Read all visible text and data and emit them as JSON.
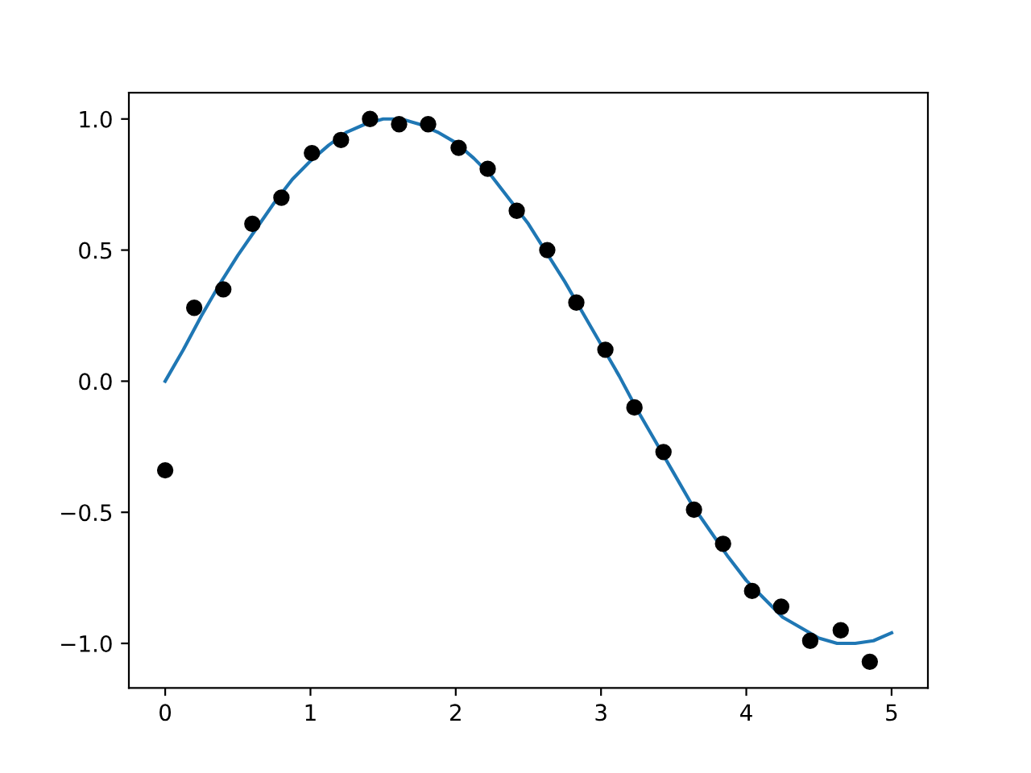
{
  "chart_data": {
    "type": "line",
    "series": [
      {
        "color": "#1f77b4",
        "marker": "none",
        "line_style": "solid",
        "x": [
          0,
          0.125,
          0.25,
          0.375,
          0.5,
          0.625,
          0.75,
          0.875,
          1,
          1.125,
          1.25,
          1.375,
          1.5,
          1.625,
          1.75,
          1.875,
          2,
          2.125,
          2.25,
          2.375,
          2.5,
          2.625,
          2.75,
          2.875,
          3,
          3.125,
          3.25,
          3.375,
          3.5,
          3.625,
          3.75,
          3.875,
          4,
          4.125,
          4.25,
          4.375,
          4.5,
          4.625,
          4.75,
          4.875,
          5
        ],
        "values": [
          0,
          0.12,
          0.25,
          0.37,
          0.48,
          0.58,
          0.68,
          0.77,
          0.84,
          0.9,
          0.95,
          0.98,
          1.0,
          1.0,
          0.98,
          0.95,
          0.91,
          0.85,
          0.78,
          0.69,
          0.6,
          0.49,
          0.38,
          0.26,
          0.14,
          0.02,
          -0.11,
          -0.23,
          -0.35,
          -0.47,
          -0.57,
          -0.67,
          -0.76,
          -0.83,
          -0.9,
          -0.94,
          -0.98,
          -1.0,
          -1.0,
          -0.99,
          -0.96
        ]
      },
      {
        "type": "scatter",
        "color": "#000000",
        "marker": "circle",
        "x": [
          0,
          0.2,
          0.4,
          0.6,
          0.8,
          1.01,
          1.21,
          1.41,
          1.61,
          1.81,
          2.02,
          2.22,
          2.42,
          2.63,
          2.83,
          3.03,
          3.23,
          3.43,
          3.64,
          3.84,
          4.04,
          4.24,
          4.44,
          4.65,
          4.85
        ],
        "values": [
          -0.34,
          0.28,
          0.35,
          0.6,
          0.7,
          0.87,
          0.92,
          1.0,
          0.98,
          0.98,
          0.89,
          0.81,
          0.65,
          0.5,
          0.3,
          0.12,
          -0.1,
          -0.27,
          -0.49,
          -0.62,
          -0.8,
          -0.86,
          -0.99,
          -0.95,
          -1.07
        ]
      }
    ],
    "xlim": [
      -0.25,
      5.25
    ],
    "xticks": [
      0,
      1,
      2,
      3,
      4,
      5
    ],
    "ylim": [
      -1.17,
      1.1
    ],
    "yticks": [
      {
        "value": -1,
        "label": "−1.0"
      },
      {
        "value": -0.5,
        "label": "−0.5"
      },
      {
        "value": 0,
        "label": "0.0"
      },
      {
        "value": 0.5,
        "label": "0.5"
      },
      {
        "value": 1,
        "label": "1.0"
      }
    ],
    "grid": false,
    "legend": false
  }
}
